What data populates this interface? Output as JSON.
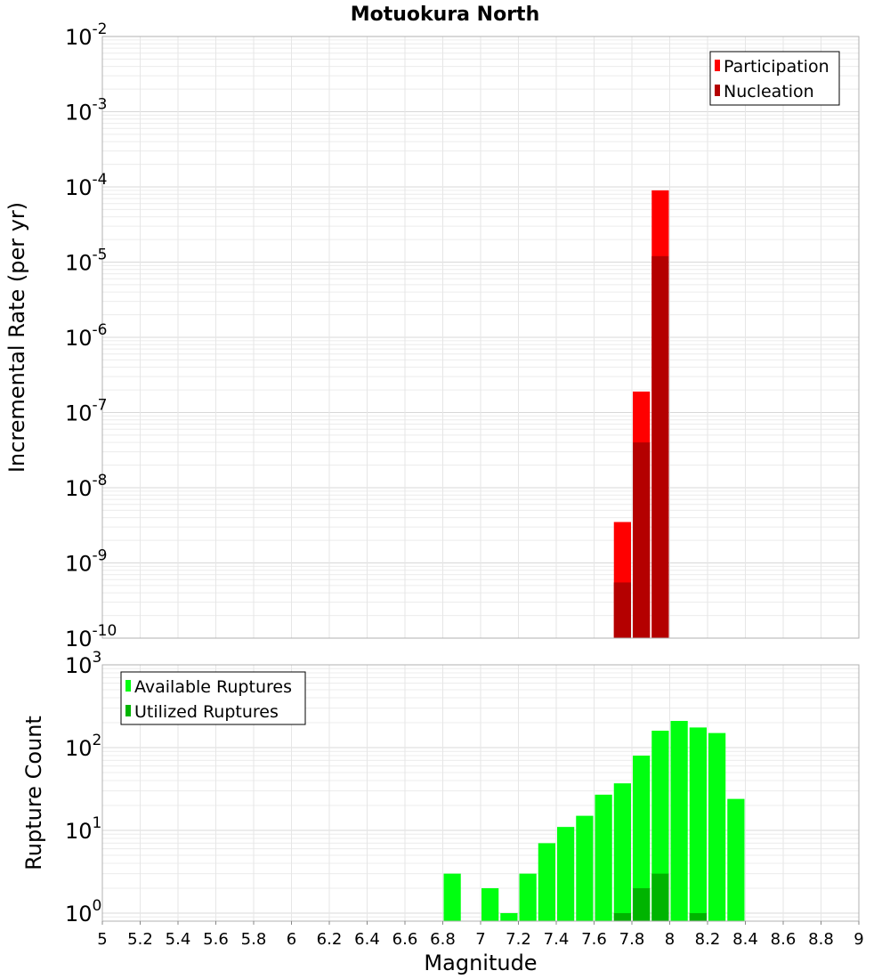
{
  "chart_data": [
    {
      "type": "bar",
      "title": "Motuokura North",
      "xlabel": "",
      "ylabel": "Incremental Rate (per yr)",
      "yscale": "log",
      "ylim": [
        1e-10,
        0.01
      ],
      "xlim": [
        5,
        9
      ],
      "bar_width": 0.1,
      "grid": true,
      "legend_position": "top-right",
      "y_tick_exponents": [
        "-10",
        "-9",
        "-8",
        "-7",
        "-6",
        "-5",
        "-4",
        "-3",
        "-2"
      ],
      "series": [
        {
          "name": "Participation",
          "color": "#ff0000",
          "x": [
            7.75,
            7.85,
            7.95
          ],
          "values": [
            3.5e-09,
            1.9e-07,
            9e-05
          ]
        },
        {
          "name": "Nucleation",
          "color": "#b40000",
          "x": [
            7.75,
            7.85,
            7.95
          ],
          "values": [
            5.5e-10,
            4e-08,
            1.2e-05
          ]
        }
      ]
    },
    {
      "type": "bar",
      "title": "",
      "xlabel": "Magnitude",
      "ylabel": "Rupture Count",
      "yscale": "log",
      "ylim": [
        0.8,
        1000
      ],
      "xlim": [
        5,
        9
      ],
      "bar_width": 0.1,
      "grid": true,
      "legend_position": "top-left",
      "x_tick_labels": [
        "5",
        "5.2",
        "5.4",
        "5.6",
        "5.8",
        "6",
        "6.2",
        "6.4",
        "6.6",
        "6.8",
        "7",
        "7.2",
        "7.4",
        "7.6",
        "7.8",
        "8",
        "8.2",
        "8.4",
        "8.6",
        "8.8",
        "9"
      ],
      "y_tick_exponents": [
        "0",
        "1",
        "2",
        "3"
      ],
      "series": [
        {
          "name": "Available Ruptures",
          "color": "#00ff10",
          "x": [
            6.85,
            7.05,
            7.15,
            7.25,
            7.35,
            7.45,
            7.55,
            7.65,
            7.75,
            7.85,
            7.95,
            8.05,
            8.15,
            8.25,
            8.35
          ],
          "values": [
            3,
            2,
            1,
            3,
            7,
            11,
            15,
            27,
            37,
            80,
            160,
            210,
            175,
            150,
            24
          ]
        },
        {
          "name": "Utilized Ruptures",
          "color": "#00b400",
          "x": [
            7.75,
            7.85,
            7.95,
            8.15
          ],
          "values": [
            1,
            2,
            3,
            1
          ]
        }
      ]
    }
  ]
}
